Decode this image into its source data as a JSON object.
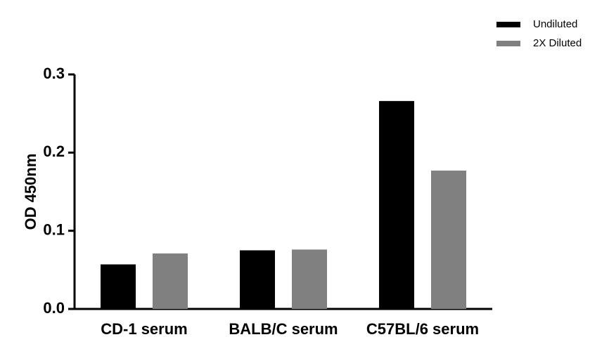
{
  "chart_data": {
    "type": "bar",
    "y_label": "OD 450nm",
    "categories": [
      "CD-1 serum",
      "BALB/C serum",
      "C57BL/6 serum"
    ],
    "series": [
      {
        "name": "Undiluted",
        "color": "#000000",
        "values": [
          0.057,
          0.075,
          0.266
        ]
      },
      {
        "name": "2X Diluted",
        "color": "#808080",
        "values": [
          0.071,
          0.076,
          0.177
        ]
      }
    ],
    "ylim": [
      0,
      0.3
    ],
    "yticks": [
      {
        "value": 0,
        "label": "0.0"
      },
      0.1,
      0.2,
      0.3
    ],
    "legend": "top-right"
  }
}
